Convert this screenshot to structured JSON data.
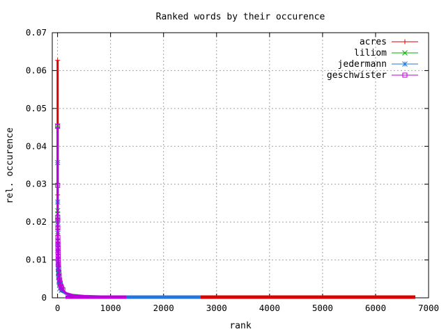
{
  "chart_data": {
    "type": "scatter",
    "title": "Ranked words by their occurence",
    "xlabel": "rank",
    "ylabel": "rel. occurence",
    "xlim": [
      -100,
      7000
    ],
    "ylim": [
      0,
      0.07
    ],
    "xticks": [
      "0",
      "1000",
      "2000",
      "3000",
      "4000",
      "5000",
      "6000",
      "7000"
    ],
    "xtick_values": [
      0,
      1000,
      2000,
      3000,
      4000,
      5000,
      6000,
      7000
    ],
    "yticks": [
      "0",
      "0.01",
      "0.02",
      "0.03",
      "0.04",
      "0.05",
      "0.06",
      "0.07"
    ],
    "ytick_values": [
      0,
      0.01,
      0.02,
      0.03,
      0.04,
      0.05,
      0.06,
      0.07
    ],
    "grid": true,
    "legend_position": "top-right",
    "series": [
      {
        "name": "acres",
        "color": "#dd0000",
        "marker": "plus",
        "max_rank": 6750,
        "head": [
          [
            1,
            0.0627
          ],
          [
            2,
            0.0272
          ],
          [
            3,
            0.021
          ],
          [
            4,
            0.0165
          ],
          [
            5,
            0.014
          ],
          [
            6,
            0.012
          ],
          [
            8,
            0.01
          ],
          [
            10,
            0.0088
          ],
          [
            13,
            0.0075
          ],
          [
            17,
            0.0062
          ],
          [
            22,
            0.0052
          ],
          [
            30,
            0.0041
          ],
          [
            40,
            0.0033
          ],
          [
            55,
            0.0026
          ],
          [
            75,
            0.002
          ],
          [
            100,
            0.0015
          ],
          [
            150,
            0.0011
          ],
          [
            250,
            0.0007
          ],
          [
            500,
            0.0004
          ],
          [
            1000,
            0.0002
          ],
          [
            3000,
            0.0001
          ],
          [
            6750,
            5e-05
          ]
        ]
      },
      {
        "name": "liliom",
        "color": "#00b000",
        "marker": "cross",
        "max_rank": 1300,
        "head": [
          [
            1,
            0.0454
          ],
          [
            2,
            0.023
          ],
          [
            3,
            0.0222
          ],
          [
            4,
            0.0185
          ],
          [
            5,
            0.015
          ],
          [
            6,
            0.0132
          ],
          [
            8,
            0.011
          ],
          [
            10,
            0.0095
          ],
          [
            13,
            0.008
          ],
          [
            17,
            0.0066
          ],
          [
            22,
            0.0055
          ],
          [
            30,
            0.0044
          ],
          [
            40,
            0.0035
          ],
          [
            55,
            0.0027
          ],
          [
            75,
            0.0021
          ],
          [
            100,
            0.0016
          ],
          [
            150,
            0.0011
          ],
          [
            250,
            0.0008
          ],
          [
            500,
            0.0005
          ],
          [
            1000,
            0.0003
          ],
          [
            1300,
            0.0002
          ]
        ]
      },
      {
        "name": "jedermann",
        "color": "#2277dd",
        "marker": "star",
        "max_rank": 2700,
        "head": [
          [
            1,
            0.0357
          ],
          [
            2,
            0.0253
          ],
          [
            3,
            0.02
          ],
          [
            4,
            0.017
          ],
          [
            5,
            0.0143
          ],
          [
            6,
            0.0125
          ],
          [
            8,
            0.0104
          ],
          [
            10,
            0.009
          ],
          [
            13,
            0.0076
          ],
          [
            17,
            0.0063
          ],
          [
            22,
            0.0053
          ],
          [
            30,
            0.0042
          ],
          [
            40,
            0.0034
          ],
          [
            55,
            0.0026
          ],
          [
            75,
            0.002
          ],
          [
            100,
            0.0015
          ],
          [
            150,
            0.0011
          ],
          [
            250,
            0.0007
          ],
          [
            500,
            0.0004
          ],
          [
            1000,
            0.0002
          ],
          [
            2700,
            0.0001
          ]
        ]
      },
      {
        "name": "geschwister",
        "color": "#bb00dd",
        "marker": "square",
        "max_rank": 1300,
        "head": [
          [
            1,
            0.0453
          ],
          [
            2,
            0.0297
          ],
          [
            3,
            0.0213
          ],
          [
            4,
            0.0205
          ],
          [
            5,
            0.0185
          ],
          [
            6,
            0.016
          ],
          [
            7,
            0.015
          ],
          [
            8,
            0.014
          ],
          [
            9,
            0.013
          ],
          [
            10,
            0.012
          ],
          [
            12,
            0.011
          ],
          [
            14,
            0.01
          ],
          [
            17,
            0.0088
          ],
          [
            20,
            0.0078
          ],
          [
            25,
            0.0067
          ],
          [
            30,
            0.0058
          ],
          [
            40,
            0.0047
          ],
          [
            50,
            0.0039
          ],
          [
            65,
            0.0031
          ],
          [
            80,
            0.0026
          ],
          [
            100,
            0.0021
          ],
          [
            130,
            0.0016
          ],
          [
            170,
            0.0012
          ],
          [
            220,
            0.001
          ],
          [
            300,
            0.0007
          ],
          [
            400,
            0.0005
          ],
          [
            600,
            0.0004
          ],
          [
            900,
            0.0003
          ],
          [
            1300,
            0.0002
          ]
        ]
      }
    ]
  }
}
